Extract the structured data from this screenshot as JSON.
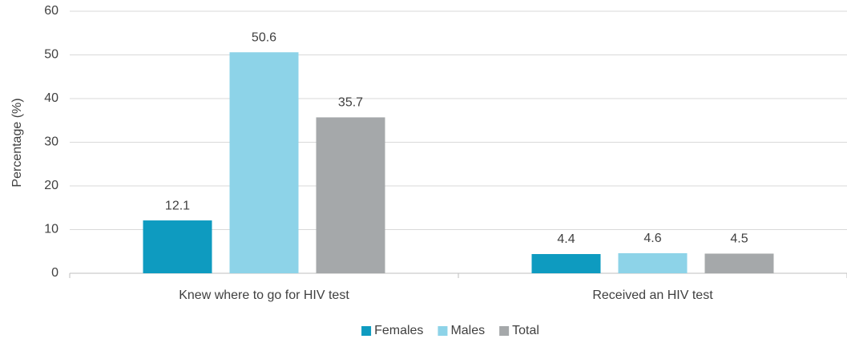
{
  "chart_data": {
    "type": "bar",
    "ylabel": "Percentage (%)",
    "categories": [
      "Knew where to go for HIV test",
      "Received an HIV test"
    ],
    "series": [
      {
        "name": "Females",
        "color": "#0e9bc0",
        "values": [
          12.1,
          4.4
        ]
      },
      {
        "name": "Males",
        "color": "#8dd3e8",
        "values": [
          50.6,
          4.6
        ]
      },
      {
        "name": "Total",
        "color": "#a5a8aa",
        "values": [
          35.7,
          4.5
        ]
      }
    ],
    "ylim": [
      0,
      60
    ],
    "yticks": [
      0,
      10,
      20,
      30,
      40,
      50,
      60
    ],
    "grid": true,
    "legend": "bottom"
  }
}
